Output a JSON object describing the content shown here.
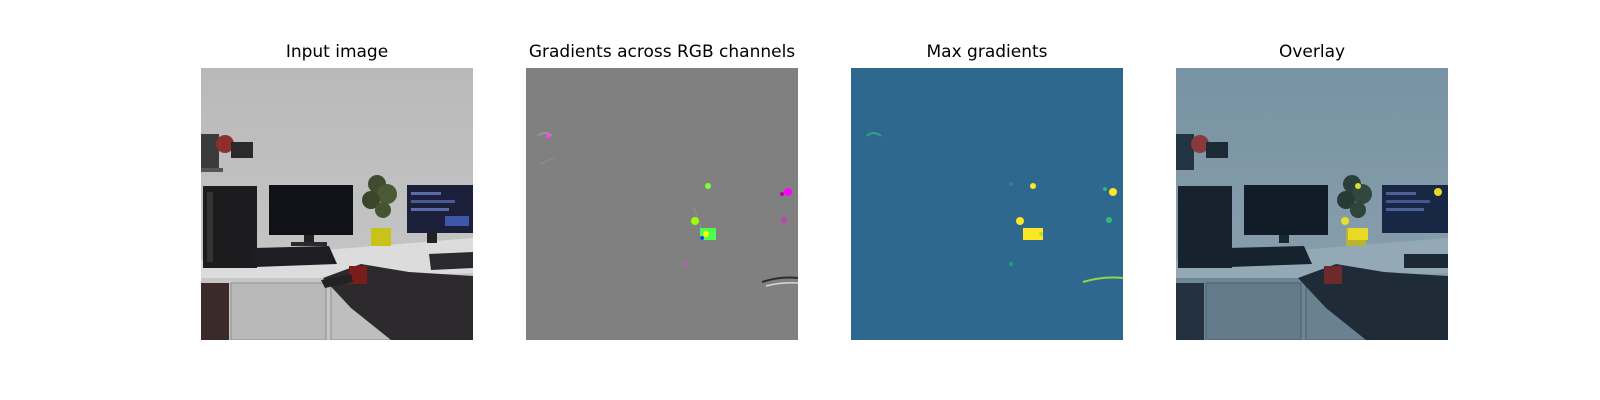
{
  "figure": {
    "panels": [
      {
        "title": "Input image"
      },
      {
        "title": "Gradients across RGB channels"
      },
      {
        "title": "Max gradients"
      },
      {
        "title": "Overlay"
      }
    ]
  },
  "colors": {
    "gradient_background": "#808080",
    "saliency_background": "#2f688e",
    "saliency_high": "#fde725",
    "saliency_mid": "#35b779"
  }
}
